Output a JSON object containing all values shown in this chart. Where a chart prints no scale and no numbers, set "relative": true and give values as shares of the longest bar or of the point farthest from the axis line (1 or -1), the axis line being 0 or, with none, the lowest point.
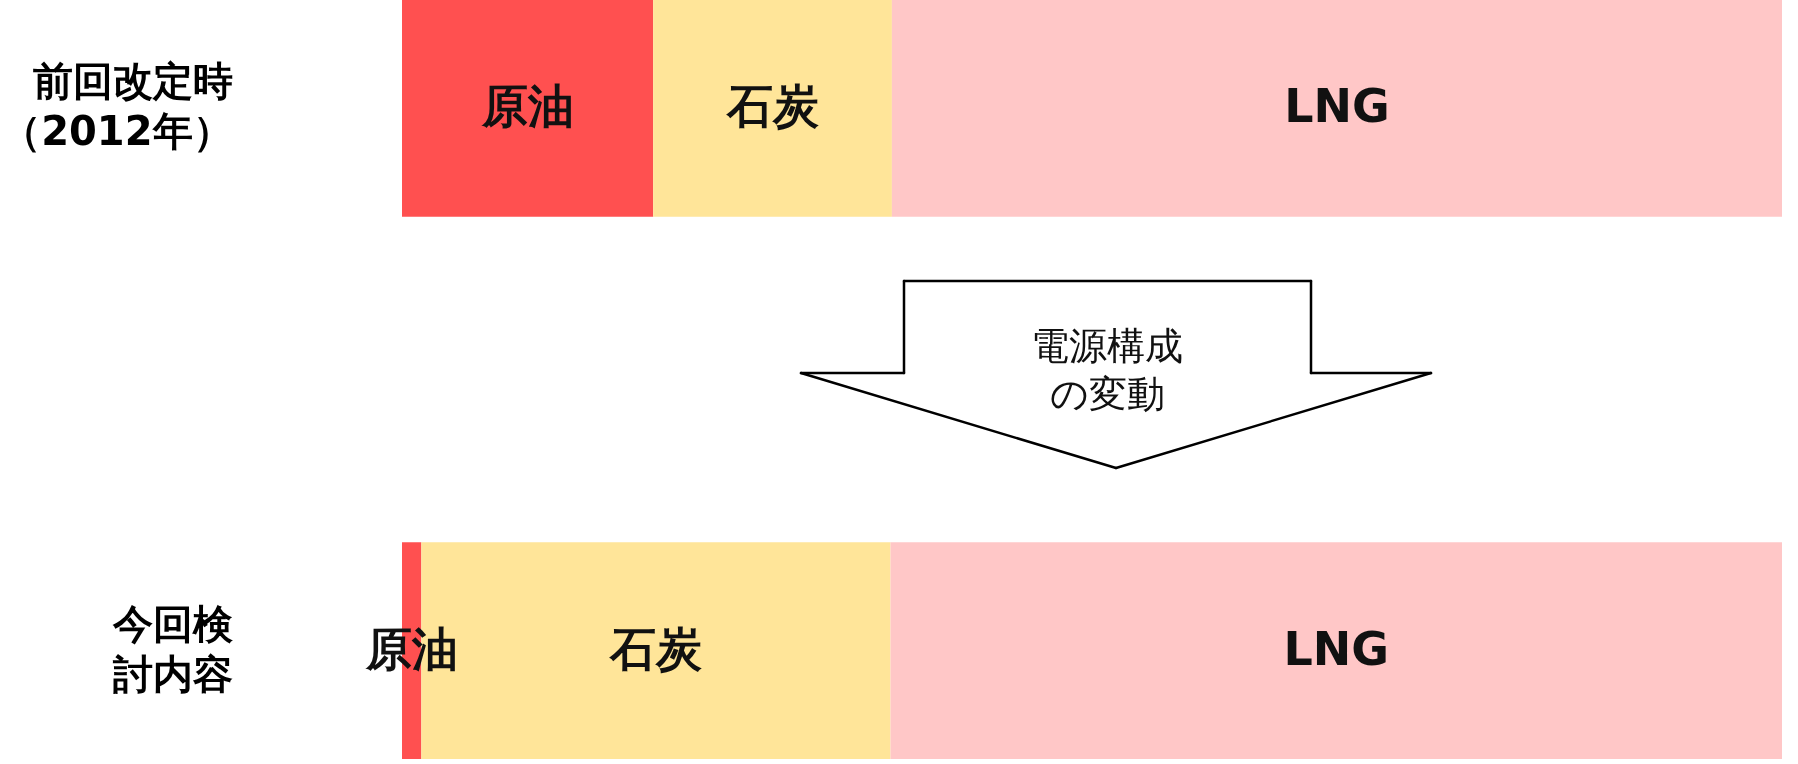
{
  "chart_data": {
    "type": "bar",
    "orientation": "horizontal",
    "stacked": true,
    "relative": true,
    "categories": [
      "前回改定時（2012年）",
      "今回検討内容"
    ],
    "series": [
      {
        "name": "原油",
        "color": "#ff5050",
        "values": [
          0.182,
          0.014
        ]
      },
      {
        "name": "石炭",
        "color": "#ffe599",
        "values": [
          0.173,
          0.34
        ]
      },
      {
        "name": "LNG",
        "color": "#ffc7c7",
        "values": [
          0.645,
          0.646
        ]
      }
    ],
    "annotations": [
      "電源構成の変動"
    ],
    "legend": false,
    "grid": false
  }
}
